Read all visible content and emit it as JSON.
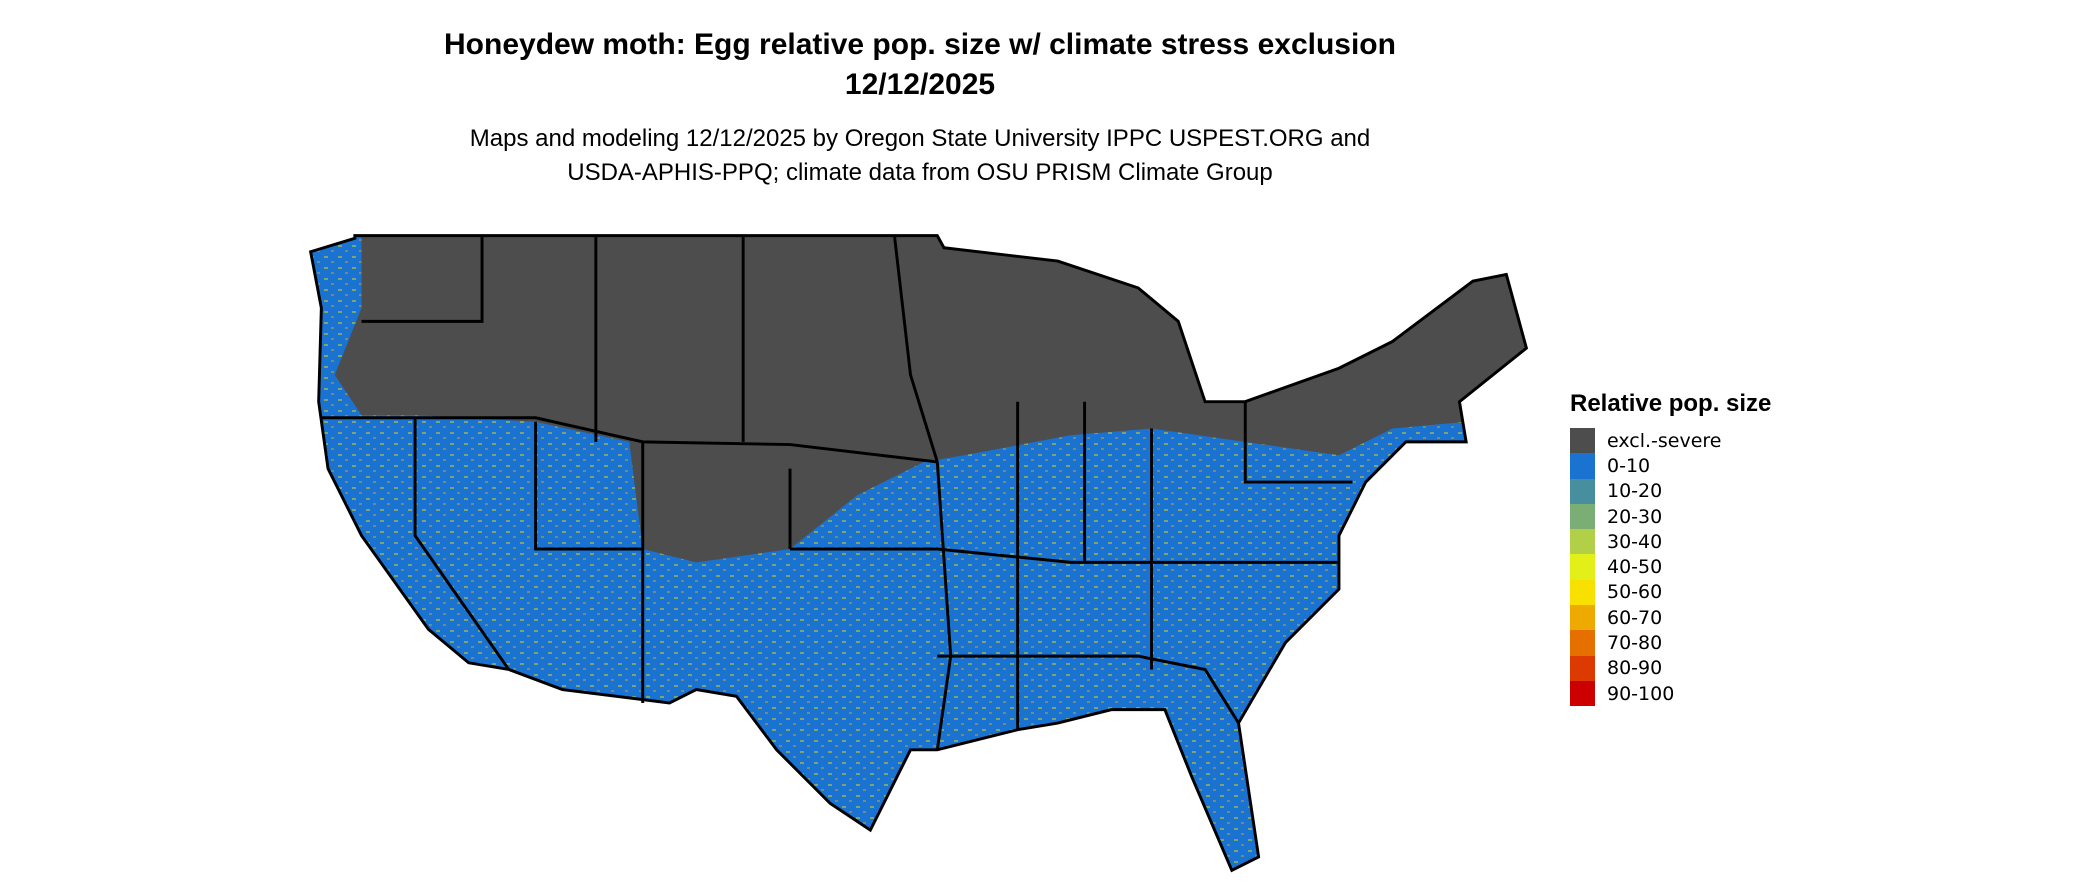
{
  "title": {
    "line1": "Honeydew moth: Egg relative pop. size w/ climate stress exclusion",
    "line2": "12/12/2025"
  },
  "subtitle": {
    "line1": "Maps and modeling 12/12/2025 by Oregon State University IPPC USPEST.ORG and",
    "line2": "USDA-APHIS-PPQ; climate data from OSU PRISM Climate Group"
  },
  "legend": {
    "title": "Relative pop. size",
    "items": [
      {
        "label": "excl.-severe",
        "color": "#4d4d4d"
      },
      {
        "label": "0-10",
        "color": "#1a73d0"
      },
      {
        "label": "10-20",
        "color": "#478f9e"
      },
      {
        "label": "20-30",
        "color": "#7bae74"
      },
      {
        "label": "30-40",
        "color": "#b2d047"
      },
      {
        "label": "40-50",
        "color": "#e3ef18"
      },
      {
        "label": "50-60",
        "color": "#f8e000"
      },
      {
        "label": "60-70",
        "color": "#eeaa00"
      },
      {
        "label": "70-80",
        "color": "#e57000"
      },
      {
        "label": "80-90",
        "color": "#dc3a00"
      },
      {
        "label": "90-100",
        "color": "#cc0000"
      }
    ]
  }
}
